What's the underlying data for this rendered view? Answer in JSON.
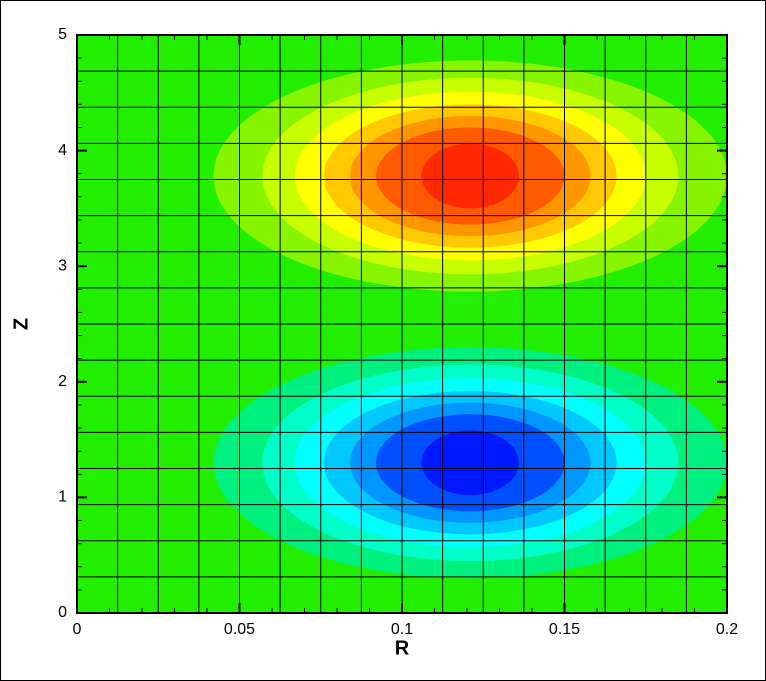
{
  "chart_data": {
    "type": "contour",
    "xlabel": "R",
    "ylabel": "Z",
    "xlim": [
      0,
      0.2
    ],
    "ylim": [
      0,
      5
    ],
    "xticks": [
      0,
      0.05,
      0.1,
      0.15,
      0.2
    ],
    "yticks": [
      0,
      1,
      2,
      3,
      4,
      5
    ],
    "xminor": 0.01,
    "yminor": 0.2,
    "mesh": {
      "dr": 0.0125,
      "dz": 0.3125
    },
    "background": "#22ee00",
    "lobes": [
      {
        "center": [
          0.121,
          3.78
        ],
        "levels": [
          {
            "color": "#88f500",
            "rx": 0.079,
            "rz": 1.0
          },
          {
            "color": "#c8ff00",
            "rx": 0.064,
            "rz": 0.85
          },
          {
            "color": "#ffff00",
            "rx": 0.054,
            "rz": 0.73
          },
          {
            "color": "#ffc800",
            "rx": 0.045,
            "rz": 0.62
          },
          {
            "color": "#ff9600",
            "rx": 0.037,
            "rz": 0.52
          },
          {
            "color": "#ff5a00",
            "rx": 0.029,
            "rz": 0.42
          },
          {
            "color": "#ff2800",
            "rx": 0.015,
            "rz": 0.28
          }
        ]
      },
      {
        "center": [
          0.121,
          1.3
        ],
        "levels": [
          {
            "color": "#00f080",
            "rx": 0.079,
            "rz": 1.0
          },
          {
            "color": "#00ffc8",
            "rx": 0.064,
            "rz": 0.85
          },
          {
            "color": "#00ffff",
            "rx": 0.054,
            "rz": 0.73
          },
          {
            "color": "#00c8ff",
            "rx": 0.045,
            "rz": 0.62
          },
          {
            "color": "#0096ff",
            "rx": 0.037,
            "rz": 0.52
          },
          {
            "color": "#0050ff",
            "rx": 0.029,
            "rz": 0.42
          },
          {
            "color": "#0018ff",
            "rx": 0.015,
            "rz": 0.28
          }
        ]
      }
    ]
  }
}
